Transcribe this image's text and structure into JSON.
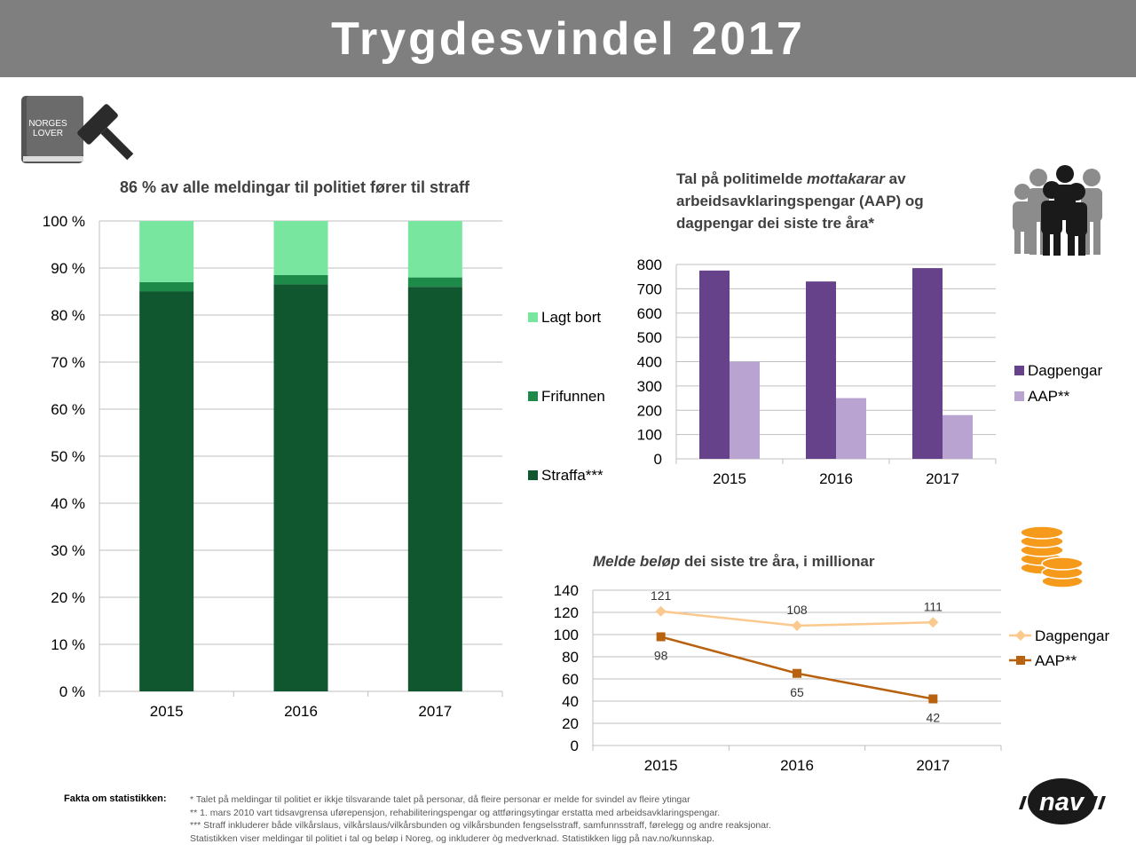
{
  "header": {
    "title": "Trygdesvindel 2017"
  },
  "book_icon": {
    "line1": "NORGES",
    "line2": "LOVER"
  },
  "chart_data": [
    {
      "type": "bar",
      "stacked": true,
      "title": "86 % av alle meldingar til politiet fører til straff",
      "categories": [
        "2015",
        "2016",
        "2017"
      ],
      "series": [
        {
          "name": "Straffa***",
          "values": [
            85,
            86.5,
            86
          ],
          "color": "#10562e"
        },
        {
          "name": "Frifunnen",
          "values": [
            2,
            2,
            2
          ],
          "color": "#1e8a4a"
        },
        {
          "name": "Lagt bort",
          "values": [
            13,
            11.5,
            12
          ],
          "color": "#79e6a0"
        }
      ],
      "ylim": [
        0,
        100
      ],
      "yticks": [
        "0 %",
        "10 %",
        "20 %",
        "30 %",
        "40 %",
        "50 %",
        "60 %",
        "70 %",
        "80 %",
        "90 %",
        "100 %"
      ],
      "legend": "right",
      "grid": true
    },
    {
      "type": "bar",
      "title_parts": [
        "Tal på politimelde ",
        "mottakarar",
        " av",
        "arbeidsavklaringspengar (AAP) og",
        "dagpengar dei siste tre åra*"
      ],
      "categories": [
        "2015",
        "2016",
        "2017"
      ],
      "series": [
        {
          "name": "Dagpengar",
          "values": [
            775,
            730,
            785
          ],
          "color": "#65428a"
        },
        {
          "name": "AAP**",
          "values": [
            400,
            250,
            180
          ],
          "color": "#b9a4d1"
        }
      ],
      "ylim": [
        0,
        800
      ],
      "yticks": [
        "0",
        "100",
        "200",
        "300",
        "400",
        "500",
        "600",
        "700",
        "800"
      ],
      "legend": "right",
      "grid": true
    },
    {
      "type": "line",
      "title_parts": [
        "Melde beløp",
        " dei siste tre åra, i millionar"
      ],
      "categories": [
        "2015",
        "2016",
        "2017"
      ],
      "series": [
        {
          "name": "Dagpengar",
          "values": [
            121,
            108,
            111
          ],
          "labels": [
            "121",
            "108",
            "111"
          ],
          "color": "#fbc88e",
          "marker": "diamond"
        },
        {
          "name": "AAP**",
          "values": [
            98,
            65,
            42
          ],
          "labels": [
            "98",
            "65",
            "42"
          ],
          "color": "#b8610e",
          "marker": "square"
        }
      ],
      "ylim": [
        0,
        140
      ],
      "yticks": [
        "0",
        "20",
        "40",
        "60",
        "80",
        "100",
        "120",
        "140"
      ],
      "legend": "right",
      "grid": true
    }
  ],
  "footer": {
    "label": "Fakta om statistikken:",
    "notes": [
      "* Talet på meldingar til politiet er ikkje tilsvarande talet på personar, då fleire personar er melde for svindel av fleire ytingar",
      "** 1. mars 2010 vart tidsavgrensa uførepensjon, rehabiliteringspengar og attføringsytingar erstatta med arbeidsavklaringspengar.",
      "*** Straff inkluderer både vilkårslaus, vilkårslaus/vilkårsbunden og vilkårsbunden fengselsstraff, samfunnsstraff, førelegg og andre reaksjonar.",
      "Statistikken viser meldingar til politiet i tal og beløp i Noreg, og inkluderer òg medverknad. Statistikken ligg på nav.no/kunnskap."
    ]
  },
  "logo": {
    "text": "nav"
  }
}
